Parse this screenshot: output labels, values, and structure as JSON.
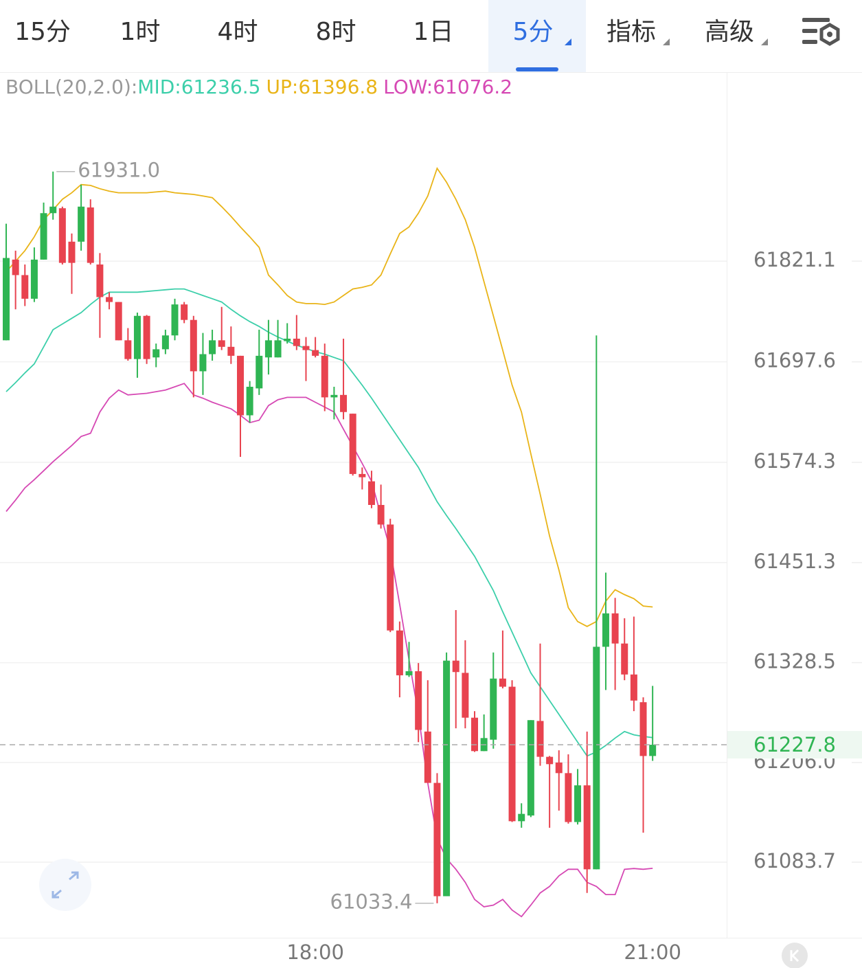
{
  "chart_data": {
    "type": "candlestick",
    "tabs": [
      "15分",
      "1时",
      "4时",
      "8时",
      "1日",
      "5分",
      "指标",
      "高级"
    ],
    "selected_tab": 5,
    "indicator_labels": [
      "BOLL(20,2.0):",
      "MID:61236.5",
      "UP:61396.8",
      "LOW:61076.2"
    ],
    "categories": [
      null,
      null,
      null,
      null,
      null,
      null,
      null,
      null,
      null,
      null,
      null,
      null,
      null,
      null,
      null,
      null,
      null,
      null,
      null,
      null,
      null,
      null,
      null,
      null,
      null,
      null,
      null,
      null,
      null,
      null,
      null,
      null,
      null,
      "18:00",
      null,
      null,
      null,
      null,
      null,
      null,
      null,
      null,
      null,
      null,
      null,
      null,
      null,
      null,
      null,
      null,
      null,
      null,
      null,
      null,
      null,
      null,
      null,
      null,
      null,
      null,
      null,
      null,
      null,
      null,
      null,
      null,
      null,
      null,
      null,
      "21:00"
    ],
    "open": [
      61724,
      61823,
      61804,
      61775,
      61823,
      61880,
      61886,
      61845,
      61845,
      61887,
      61817,
      61777,
      61771,
      61724,
      61701,
      61754,
      61703,
      61713,
      61730,
      61768,
      61749,
      61686,
      61707,
      61724,
      61716,
      61705,
      61632,
      61665,
      61703,
      61703,
      61723,
      61726,
      61717,
      61712,
      61705,
      61654,
      61657,
      61634,
      61560,
      61551,
      61522,
      61498,
      61368,
      61313,
      61318,
      61244,
      61181,
      61042,
      61331,
      61316,
      61261,
      61220,
      61234,
      61309,
      61299,
      61134,
      61141,
      61257,
      61213,
      61206,
      61193,
      61133,
      61178,
      61075,
      61348,
      61389,
      61352,
      61314,
      61280,
      61214
    ],
    "high": [
      61867,
      61834,
      61817,
      61838,
      61893,
      61931,
      61888,
      61855,
      61915,
      61897,
      61831,
      61783,
      61771,
      61739,
      61758,
      61755,
      61720,
      61737,
      61775,
      61771,
      61754,
      61733,
      61737,
      61765,
      61741,
      61705,
      61674,
      61737,
      61749,
      61749,
      61745,
      61755,
      61728,
      61728,
      61720,
      61667,
      61726,
      61634,
      61568,
      61564,
      61547,
      61505,
      61379,
      61354,
      61328,
      61307,
      61193,
      61341,
      61393,
      61356,
      61269,
      61265,
      61341,
      61368,
      61307,
      61156,
      61258,
      61352,
      61214,
      61221,
      61216,
      61198,
      61244,
      61730,
      61439,
      61408,
      61383,
      61385,
      61286,
      61300
    ],
    "low": [
      61724,
      61762,
      61766,
      61771,
      61823,
      61872,
      61817,
      61781,
      61834,
      61817,
      61727,
      61762,
      61724,
      61699,
      61678,
      61695,
      61691,
      61707,
      61724,
      61745,
      61654,
      61657,
      61699,
      61712,
      61695,
      61581,
      61623,
      61657,
      61682,
      61703,
      61720,
      61712,
      61674,
      61703,
      61637,
      61627,
      61627,
      61558,
      61541,
      61518,
      61493,
      61366,
      61286,
      61311,
      61231,
      61181,
      61033.4,
      61042,
      61248,
      61248,
      61219,
      61220,
      61223,
      61297,
      61133,
      61126,
      61139,
      61202,
      61126,
      61147,
      61131,
      61130,
      61046,
      61075,
      61295,
      61295,
      61307,
      61269,
      61120,
      61208
    ],
    "close": [
      61825,
      61804,
      61775,
      61823,
      61880,
      61888,
      61819,
      61819,
      61888,
      61819,
      61777,
      61771,
      61724,
      61701,
      61754,
      61701,
      61713,
      61730,
      61768,
      61749,
      61686,
      61707,
      61724,
      61716,
      61705,
      61632,
      61667,
      61705,
      61724,
      61724,
      61726,
      61717,
      61712,
      61705,
      61654,
      61657,
      61636,
      61560,
      61556,
      61522,
      61498,
      61368,
      61313,
      61318,
      61246,
      61181,
      61042,
      61331,
      61317,
      61261,
      61220,
      61236,
      61309,
      61299,
      61134,
      61143,
      61258,
      61213,
      61204,
      61193,
      61133,
      61178,
      61075,
      61348,
      61389,
      61352,
      61314,
      61282,
      61214,
      61227.8
    ],
    "up_color": "#2fb553",
    "down_color": "#e8434f",
    "overlays": [
      {
        "name": "MID",
        "color": "#3ccfaa",
        "values": [
          61661,
          61672,
          61684,
          61695,
          61716,
          61737,
          61744,
          61751,
          61758,
          61768,
          61777,
          61783,
          61783,
          61783,
          61783,
          61784,
          61785,
          61786,
          61787,
          61787,
          61783,
          61779,
          61775,
          61771,
          61762,
          61754,
          61747,
          61741,
          61734,
          61728,
          61723,
          61718,
          61714,
          61710,
          61707,
          61703,
          61699,
          61684,
          61669,
          61653,
          61636,
          61619,
          61602,
          61585,
          61568,
          61547,
          61526,
          61509,
          61493,
          61476,
          61459,
          61438,
          61417,
          61391,
          61366,
          61341,
          61316,
          61299,
          61282,
          61265,
          61248,
          61231,
          61214,
          61219,
          61227,
          61236,
          61244,
          61240,
          61238,
          61236.5
        ]
      },
      {
        "name": "UP",
        "color": "#e9b418",
        "values": [
          61808,
          61821,
          61834,
          61851,
          61872,
          61884,
          61897,
          61905,
          61915,
          61914,
          61910,
          61907,
          61905,
          61905,
          61905,
          61905,
          61906,
          61907,
          61905,
          61904,
          61903,
          61901,
          61899,
          61888,
          61876,
          61863,
          61851,
          61838,
          61804,
          61792,
          61779,
          61771,
          61769,
          61769,
          61768,
          61771,
          61779,
          61787,
          61789,
          61792,
          61804,
          61830,
          61855,
          61863,
          61880,
          61901,
          61935,
          61918,
          61897,
          61872,
          61838,
          61796,
          61754,
          61712,
          61669,
          61636,
          61585,
          61535,
          61484,
          61442,
          61396,
          61379,
          61373,
          61379,
          61404,
          61418,
          61412,
          61407,
          61398,
          61396.8
        ]
      },
      {
        "name": "LOW",
        "color": "#d649b4",
        "values": [
          61514,
          61528,
          61543,
          61553,
          61564,
          61575,
          61585,
          61595,
          61606,
          61610,
          61636,
          61653,
          61663,
          61657,
          61658,
          61659,
          61661,
          61663,
          61667,
          61671,
          61657,
          61653,
          61648,
          61644,
          61640,
          61632,
          61623,
          61626,
          61644,
          61651,
          61654,
          61654,
          61654,
          61648,
          61642,
          61636,
          61615,
          61594,
          61573,
          61551,
          61509,
          61467,
          61400,
          61332,
          61265,
          61181,
          61113,
          61088,
          61075,
          61059,
          61038,
          61029,
          61031,
          61038,
          61025,
          61017,
          61031,
          61046,
          61054,
          61067,
          61075,
          61075,
          61059,
          61054,
          61044,
          61044,
          61075,
          61076,
          61075,
          61076.2
        ]
      }
    ],
    "ylim": [
      60991,
      62053
    ],
    "yticks": [
      61083.7,
      {
        "value": 61206,
        "label": "61206.0"
      },
      61328.5,
      61451.3,
      61574.3,
      61697.6,
      61821.1
    ],
    "grid": true,
    "last_price": 61227.8,
    "annotations": [
      {
        "value": 61931,
        "label": "61931.0"
      },
      {
        "value": 61033.4,
        "label": "61033.4"
      }
    ]
  }
}
